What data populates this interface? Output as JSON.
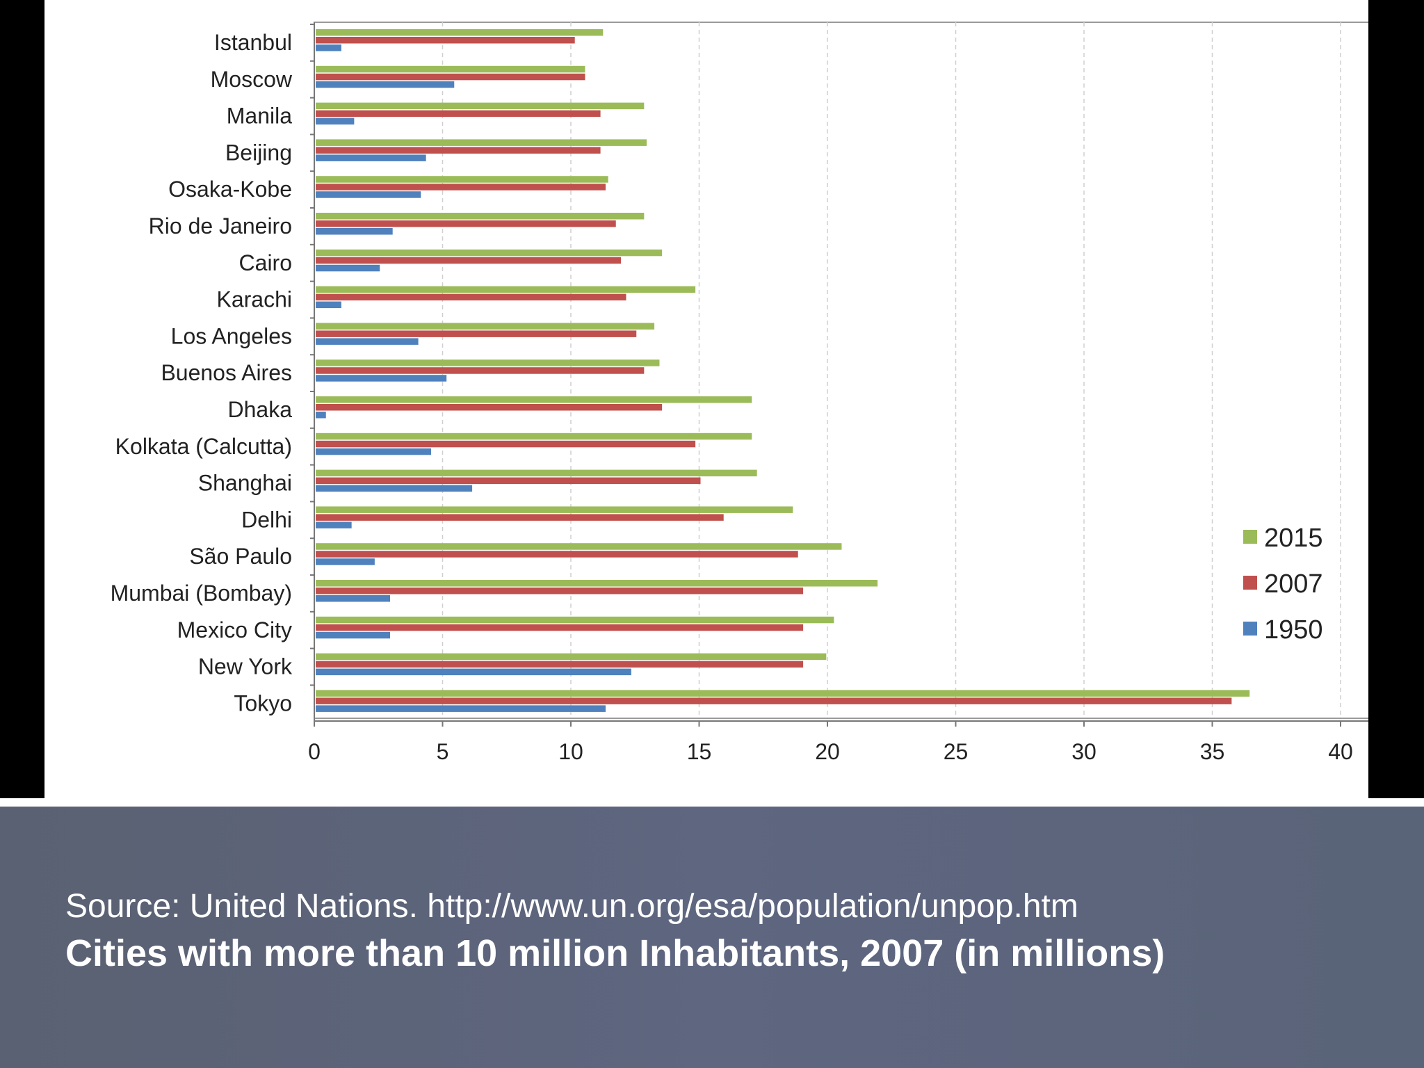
{
  "caption": {
    "source": "Source: United Nations. http://www.un.org/esa/population/unpop.htm",
    "title": "Cities with more than 10 million Inhabitants, 2007 (in millions)"
  },
  "chart_data": {
    "type": "bar",
    "orientation": "horizontal",
    "categories": [
      "Istanbul",
      "Moscow",
      "Manila",
      "Beijing",
      "Osaka-Kobe",
      "Rio de Janeiro",
      "Cairo",
      "Karachi",
      "Los Angeles",
      "Buenos Aires",
      "Dhaka",
      "Kolkata (Calcutta)",
      "Shanghai",
      "Delhi",
      "São Paulo",
      "Mumbai (Bombay)",
      "Mexico City",
      "New York",
      "Tokyo"
    ],
    "series": [
      {
        "name": "2015",
        "color": "#9bbb59",
        "values": [
          11.2,
          10.5,
          12.8,
          12.9,
          11.4,
          12.8,
          13.5,
          14.8,
          13.2,
          13.4,
          17.0,
          17.0,
          17.2,
          18.6,
          20.5,
          21.9,
          20.2,
          19.9,
          36.4
        ]
      },
      {
        "name": "2007",
        "color": "#c0504d",
        "values": [
          10.1,
          10.5,
          11.1,
          11.1,
          11.3,
          11.7,
          11.9,
          12.1,
          12.5,
          12.8,
          13.5,
          14.8,
          15.0,
          15.9,
          18.8,
          19.0,
          19.0,
          19.0,
          35.7
        ]
      },
      {
        "name": "1950",
        "color": "#4f81bd",
        "values": [
          1.0,
          5.4,
          1.5,
          4.3,
          4.1,
          3.0,
          2.5,
          1.0,
          4.0,
          5.1,
          0.4,
          4.5,
          6.1,
          1.4,
          2.3,
          2.9,
          2.9,
          12.3,
          11.3
        ]
      }
    ],
    "xticks": [
      "0",
      "5",
      "10",
      "15",
      "20",
      "25",
      "30",
      "35",
      "40"
    ],
    "xlim": [
      0,
      40
    ],
    "grid": "vertical dashed",
    "legend": "right"
  }
}
